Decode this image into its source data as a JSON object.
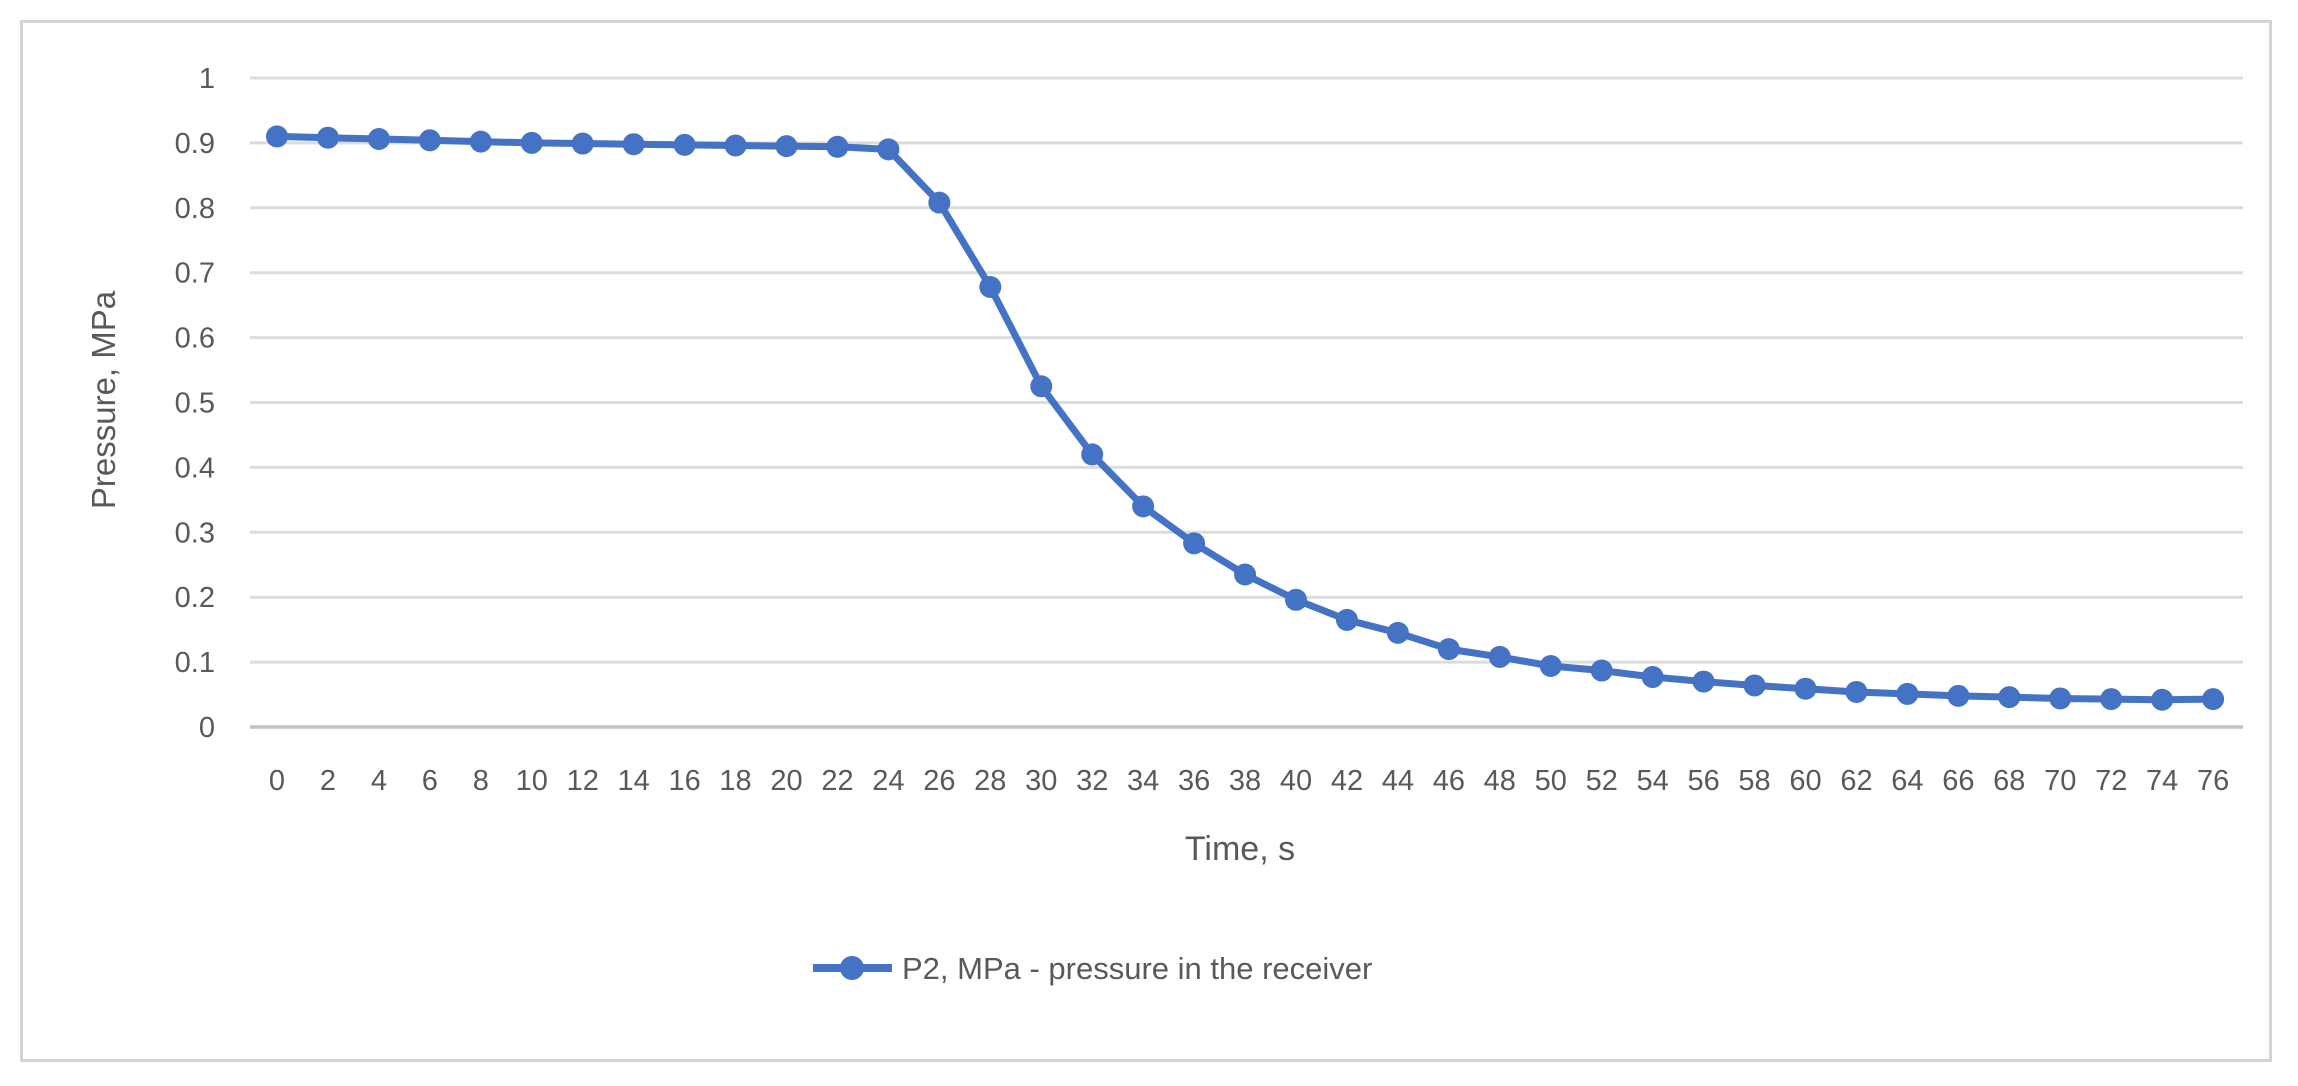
{
  "chart_data": {
    "type": "line",
    "x": [
      0,
      2,
      4,
      6,
      8,
      10,
      12,
      14,
      16,
      18,
      20,
      22,
      24,
      26,
      28,
      30,
      32,
      34,
      36,
      38,
      40,
      42,
      44,
      46,
      48,
      50,
      52,
      54,
      56,
      58,
      60,
      62,
      64,
      66,
      68,
      70,
      72,
      74,
      76
    ],
    "series": [
      {
        "name": "P2, MPa - pressure in the receiver",
        "values": [
          0.91,
          0.908,
          0.906,
          0.904,
          0.902,
          0.9,
          0.899,
          0.898,
          0.897,
          0.896,
          0.895,
          0.894,
          0.89,
          0.808,
          0.678,
          0.525,
          0.42,
          0.34,
          0.283,
          0.235,
          0.196,
          0.165,
          0.145,
          0.12,
          0.108,
          0.094,
          0.087,
          0.077,
          0.07,
          0.064,
          0.059,
          0.054,
          0.051,
          0.048,
          0.046,
          0.044,
          0.043,
          0.042,
          0.043
        ]
      }
    ],
    "title": "",
    "xlabel": "Time, s",
    "ylabel": "Pressure, MPa",
    "xlim": [
      0,
      76
    ],
    "ylim": [
      0,
      1
    ],
    "yticks": [
      0,
      0.1,
      0.2,
      0.3,
      0.4,
      0.5,
      0.6,
      0.7,
      0.8,
      0.9,
      1
    ],
    "ytick_labels": [
      "0",
      "0.1",
      "0.2",
      "0.3",
      "0.4",
      "0.5",
      "0.6",
      "0.7",
      "0.8",
      "0.9",
      "1"
    ],
    "grid": "horizontal",
    "legend_position": "bottom-center",
    "line_color": "#4472C4",
    "marker": "circle",
    "grid_color": "#dcdcdc",
    "axis_color": "#c2c2c2",
    "text_color": "#595959"
  }
}
